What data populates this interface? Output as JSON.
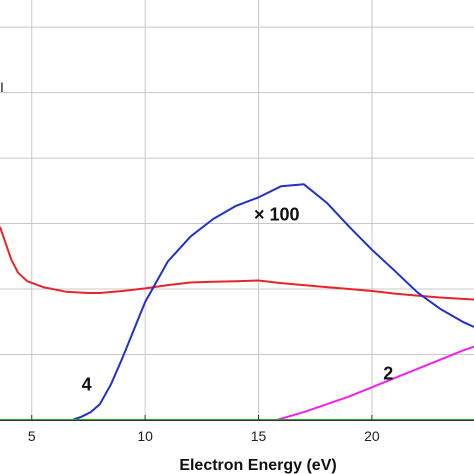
{
  "chart_data": {
    "type": "line",
    "xlabel": "Electron Energy (eV)",
    "ylabel": "",
    "title": "",
    "xlim": [
      3.6,
      24.5
    ],
    "ylim": [
      0,
      6.2
    ],
    "x_ticks": [
      5,
      10,
      15,
      20
    ],
    "grid": true,
    "colors": {
      "red": "#e8242a",
      "blue": "#2230cc",
      "magenta": "#ee22ee",
      "green": "#22aa22",
      "grid": "#c8c8c8"
    },
    "series": [
      {
        "color": "#e8242a",
        "x": [
          3.6,
          3.8,
          4.1,
          4.4,
          4.8,
          5.5,
          6.5,
          7.5,
          8.0,
          9.0,
          10.0,
          11.0,
          12.0,
          13.0,
          14.0,
          15.0,
          16.0,
          17.0,
          18.0,
          19.0,
          20.0,
          21.0,
          22.0,
          23.0,
          24.0,
          24.5
        ],
        "y": [
          2.95,
          2.75,
          2.45,
          2.25,
          2.12,
          2.03,
          1.96,
          1.94,
          1.94,
          1.97,
          2.01,
          2.06,
          2.1,
          2.11,
          2.12,
          2.13,
          2.09,
          2.06,
          2.03,
          2.0,
          1.97,
          1.93,
          1.9,
          1.87,
          1.85,
          1.84
        ]
      },
      {
        "color": "#2230cc",
        "label": "4",
        "x": [
          6.8,
          7.2,
          7.6,
          8.0,
          8.5,
          9.0,
          10.0,
          11.0,
          12.0,
          13.0,
          14.0,
          15.0,
          16.0,
          17.0,
          18.0,
          19.0,
          20.0,
          21.0,
          22.0,
          23.0,
          24.0,
          24.5
        ],
        "y": [
          0.0,
          0.05,
          0.12,
          0.24,
          0.55,
          0.95,
          1.8,
          2.42,
          2.8,
          3.07,
          3.27,
          3.4,
          3.57,
          3.6,
          3.32,
          2.95,
          2.6,
          2.28,
          1.95,
          1.7,
          1.5,
          1.42
        ]
      },
      {
        "color": "#ee22ee",
        "label": "2",
        "x": [
          15.8,
          17.0,
          18.0,
          19.0,
          20.0,
          21.0,
          22.0,
          23.0,
          24.0,
          24.5
        ],
        "y": [
          0.0,
          0.12,
          0.24,
          0.36,
          0.5,
          0.64,
          0.78,
          0.92,
          1.06,
          1.12
        ]
      },
      {
        "color": "#22aa22",
        "x": [
          3.6,
          24.5
        ],
        "y": [
          0.0,
          0.0
        ]
      }
    ],
    "annotations": [
      {
        "text": "× 100",
        "x": 14.8,
        "y": 3.05
      },
      {
        "text": "4",
        "x": 7.2,
        "y": 0.45
      },
      {
        "text": "2",
        "x": 20.5,
        "y": 0.62
      }
    ],
    "edge_mark": "I"
  }
}
